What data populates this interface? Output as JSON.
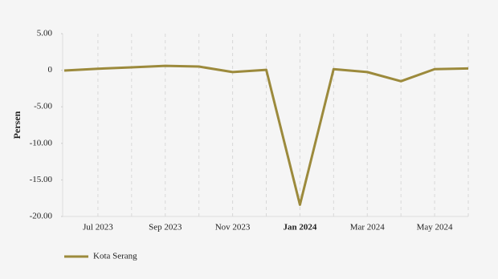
{
  "chart_data": {
    "type": "line",
    "y_label": "Persen",
    "categories": [
      null,
      "Jul 2023",
      null,
      "Sep 2023",
      null,
      "Nov 2023",
      null,
      "Jan 2024",
      null,
      "Mar 2024",
      null,
      "May 2024",
      null
    ],
    "series": [
      {
        "name": "Kota Serang",
        "color": "#9c8a3c",
        "values": [
          -0.05,
          0.2,
          0.4,
          0.6,
          0.5,
          -0.25,
          0.05,
          -18.4,
          0.15,
          -0.25,
          -1.5,
          0.15,
          0.25
        ]
      }
    ],
    "ylim": [
      -20,
      5
    ],
    "yticks": [
      {
        "value": -20,
        "label": "-20.00"
      },
      {
        "value": -15,
        "label": "-15.00"
      },
      {
        "value": -10,
        "label": "-10.00"
      },
      {
        "value": -5,
        "label": "-5.00"
      },
      0,
      {
        "value": 5,
        "label": "5.00"
      }
    ],
    "grid": true
  }
}
